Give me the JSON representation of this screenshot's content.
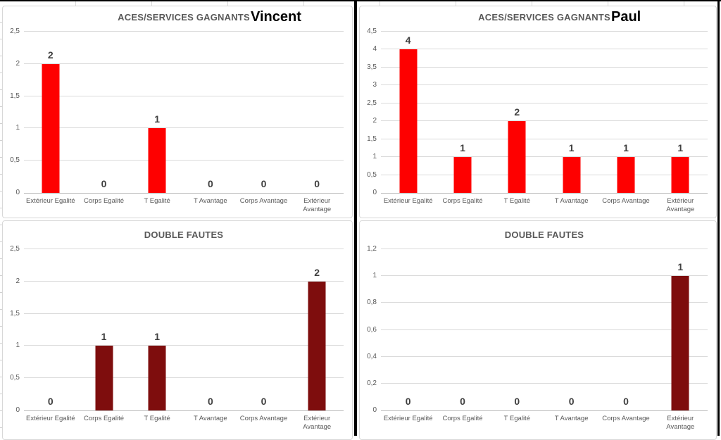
{
  "page": {
    "background_color": "#FFFFFF",
    "frame_color": "#000000",
    "gridline_color": "#DADADA",
    "axis_label_color": "#595959",
    "data_label_color": "#3F3F3F"
  },
  "players": [
    "Vincent",
    "Paul"
  ],
  "chart_data": [
    {
      "id": "aces-vincent",
      "type": "bar",
      "title": "ACES/SERVICES GAGNANTS",
      "player": "Vincent",
      "categories": [
        "Extérieur Egalité",
        "Corps Egalité",
        "T Egalité",
        "T Avantage",
        "Corps Avantage",
        "Extérieur Avantage"
      ],
      "values": [
        2,
        0,
        1,
        0,
        0,
        0
      ],
      "data_labels": [
        "2",
        "0",
        "1",
        "0",
        "0",
        "0"
      ],
      "ylim": [
        0,
        2.5
      ],
      "yticks": [
        "0",
        "0,5",
        "1",
        "1,5",
        "2",
        "2,5"
      ],
      "xlabel": "",
      "ylabel": "",
      "grid": true,
      "legend": "none",
      "bar_color": "#FE0000"
    },
    {
      "id": "aces-paul",
      "type": "bar",
      "title": "ACES/SERVICES GAGNANTS",
      "player": "Paul",
      "categories": [
        "Extérieur Egalité",
        "Corps Egalité",
        "T Egalité",
        "T Avantage",
        "Corps Avantage",
        "Extérieur Avantage"
      ],
      "values": [
        4,
        1,
        2,
        1,
        1,
        1
      ],
      "data_labels": [
        "4",
        "1",
        "2",
        "1",
        "1",
        "1"
      ],
      "ylim": [
        0,
        4.5
      ],
      "yticks": [
        "0",
        "0,5",
        "1",
        "1,5",
        "2",
        "2,5",
        "3",
        "3,5",
        "4",
        "4,5"
      ],
      "xlabel": "",
      "ylabel": "",
      "grid": true,
      "legend": "none",
      "bar_color": "#FE0000"
    },
    {
      "id": "double-fautes-vincent",
      "type": "bar",
      "title": "DOUBLE FAUTES",
      "player": "",
      "categories": [
        "Extérieur Egalité",
        "Corps Egalité",
        "T Egalité",
        "T Avantage",
        "Corps Avantage",
        "Extérieur Avantage"
      ],
      "values": [
        0,
        1,
        1,
        0,
        0,
        2
      ],
      "data_labels": [
        "0",
        "1",
        "1",
        "0",
        "0",
        "2"
      ],
      "ylim": [
        0,
        2.5
      ],
      "yticks": [
        "0",
        "0,5",
        "1",
        "1,5",
        "2",
        "2,5"
      ],
      "xlabel": "",
      "ylabel": "",
      "grid": true,
      "legend": "none",
      "bar_color": "#7E0D0D"
    },
    {
      "id": "double-fautes-paul",
      "type": "bar",
      "title": "DOUBLE FAUTES",
      "player": "",
      "categories": [
        "Extérieur Egalité",
        "Corps Egalité",
        "T Egalité",
        "T Avantage",
        "Corps Avantage",
        "Extérieur Avantage"
      ],
      "values": [
        0,
        0,
        0,
        0,
        0,
        1
      ],
      "data_labels": [
        "0",
        "0",
        "0",
        "0",
        "0",
        "1"
      ],
      "ylim": [
        0,
        1.2
      ],
      "yticks": [
        "0",
        "0,2",
        "0,4",
        "0,6",
        "0,8",
        "1",
        "1,2"
      ],
      "xlabel": "",
      "ylabel": "",
      "grid": true,
      "legend": "none",
      "bar_color": "#7E0D0D"
    }
  ]
}
